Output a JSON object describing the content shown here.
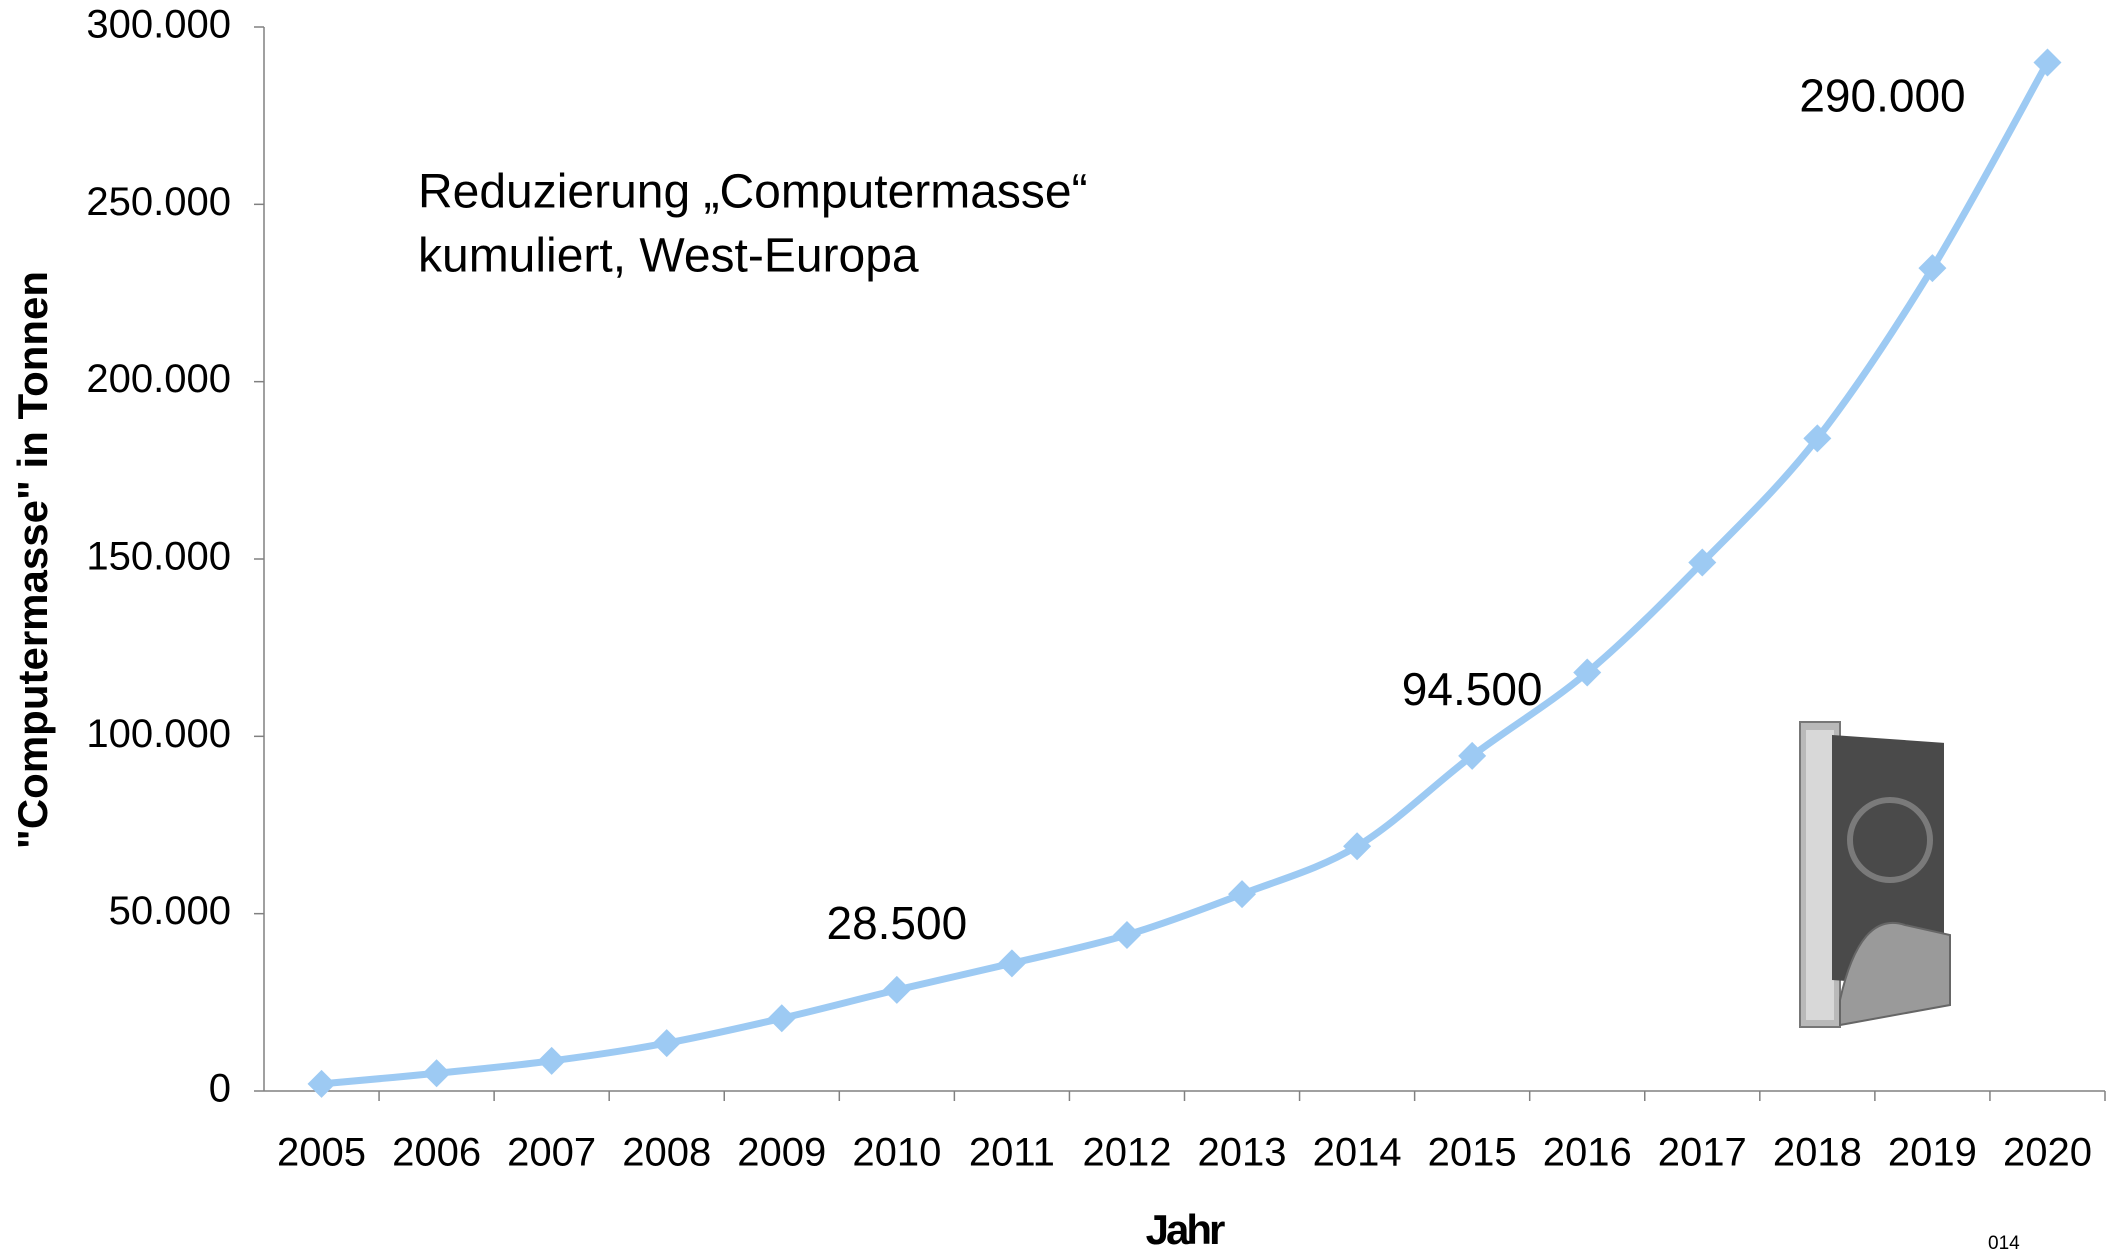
{
  "chart_data": {
    "type": "line",
    "annotation": [
      "Reduzierung „Computermasse“",
      "kumuliert, West-Europa"
    ],
    "x_label": "Jahr",
    "y_label": "\"Computermasse\" in Tonnen",
    "footnote": "014",
    "categories": [
      "2005",
      "2006",
      "2007",
      "2008",
      "2009",
      "2010",
      "2011",
      "2012",
      "2013",
      "2014",
      "2015",
      "2016",
      "2017",
      "2018",
      "2019",
      "2020"
    ],
    "values": [
      2000,
      5000,
      8500,
      13500,
      20500,
      28500,
      36000,
      44000,
      55500,
      69000,
      94500,
      118000,
      149000,
      184000,
      232000,
      290000
    ],
    "value_labels": [
      null,
      null,
      null,
      null,
      null,
      "28.500",
      null,
      null,
      null,
      null,
      "94.500",
      null,
      null,
      null,
      null,
      "290.000"
    ],
    "color": "#9dcaf3",
    "ylim": [
      0,
      300000
    ],
    "yticks": [
      0,
      {
        "value": 50000,
        "label": "50.000"
      },
      {
        "value": 100000,
        "label": "100.000"
      },
      {
        "value": 150000,
        "label": "150.000"
      },
      {
        "value": 200000,
        "label": "200.000"
      },
      {
        "value": 250000,
        "label": "250.000"
      },
      {
        "value": 300000,
        "label": "300.000"
      }
    ],
    "grid": false
  }
}
